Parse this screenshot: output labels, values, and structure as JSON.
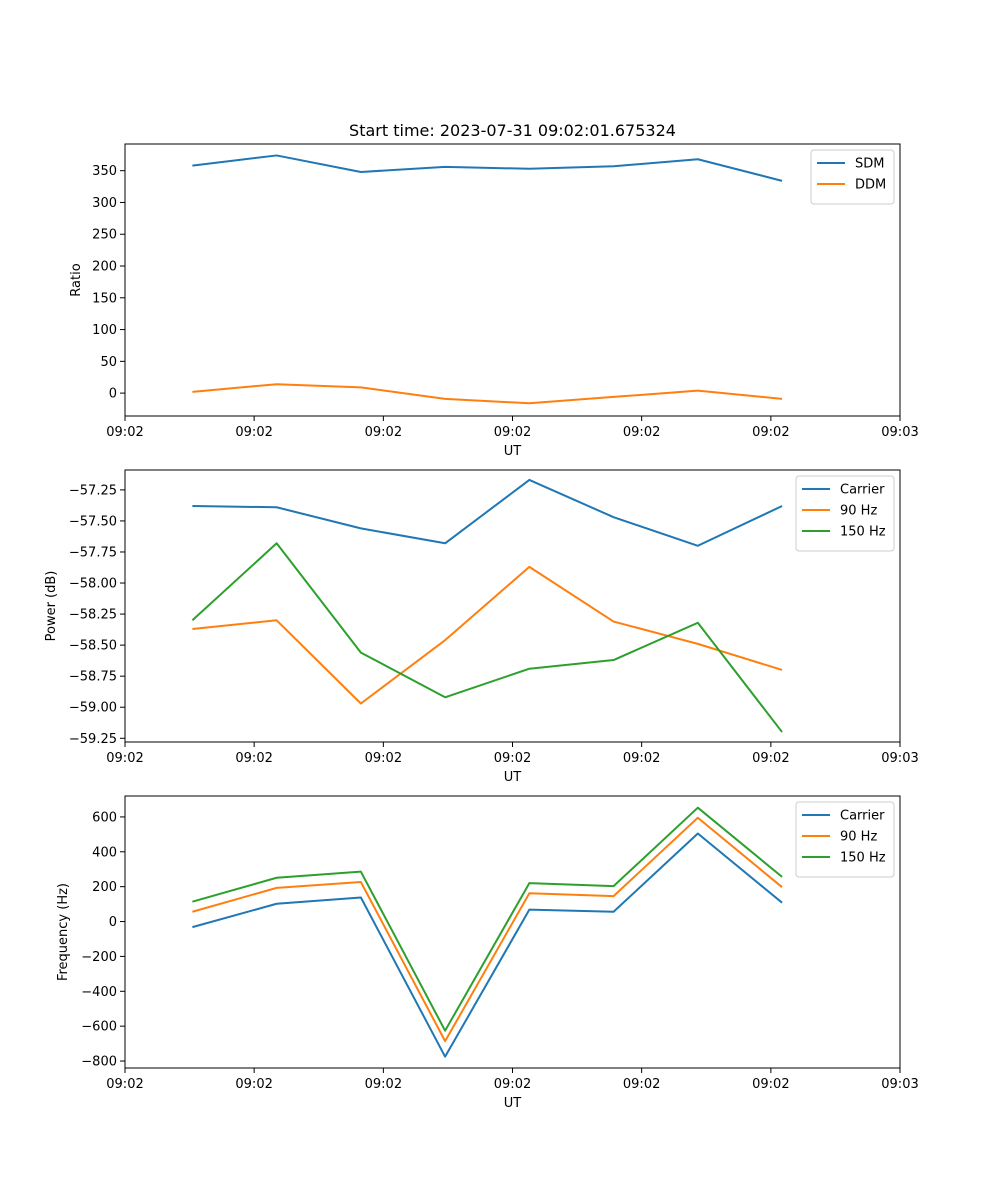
{
  "figure_title": "Start time: 2023-07-31 09:02:01.675324",
  "colors": {
    "blue": "#1f77b4",
    "orange": "#ff7f0e",
    "green": "#2ca02c"
  },
  "chart_data": [
    {
      "type": "line",
      "title": "Start time: 2023-07-31 09:02:01.675324",
      "xlabel": "UT",
      "ylabel": "Ratio",
      "x": [
        1,
        2,
        3,
        4,
        5,
        6,
        7,
        8
      ],
      "xlim": [
        0.2,
        9.4
      ],
      "x_ticks": [
        0.2,
        1.733,
        3.267,
        4.8,
        6.333,
        7.867,
        9.4
      ],
      "x_tick_labels": [
        "09:02",
        "09:02",
        "09:02",
        "09:02",
        "09:02",
        "09:02",
        "09:03"
      ],
      "ylim": [
        -36,
        392
      ],
      "y_ticks": [
        0,
        50,
        100,
        150,
        200,
        250,
        300,
        350
      ],
      "y_tick_labels": [
        "0",
        "50",
        "100",
        "150",
        "200",
        "250",
        "300",
        "350"
      ],
      "legend_position": "top-right",
      "series": [
        {
          "name": "SDM",
          "color": "#1f77b4",
          "values": [
            358,
            374,
            348,
            356,
            353,
            357,
            368,
            334
          ]
        },
        {
          "name": "DDM",
          "color": "#ff7f0e",
          "values": [
            2,
            14,
            9,
            -9,
            -16,
            -6,
            4,
            -9
          ]
        }
      ]
    },
    {
      "type": "line",
      "title": "",
      "xlabel": "UT",
      "ylabel": "Power (dB)",
      "x": [
        1,
        2,
        3,
        4,
        5,
        6,
        7,
        8
      ],
      "xlim": [
        0.2,
        9.4
      ],
      "x_ticks": [
        0.2,
        1.733,
        3.267,
        4.8,
        6.333,
        7.867,
        9.4
      ],
      "x_tick_labels": [
        "09:02",
        "09:02",
        "09:02",
        "09:02",
        "09:02",
        "09:02",
        "09:03"
      ],
      "ylim": [
        -59.28,
        -57.09
      ],
      "y_ticks": [
        -59.25,
        -59.0,
        -58.75,
        -58.5,
        -58.25,
        -58.0,
        -57.75,
        -57.5,
        -57.25
      ],
      "y_tick_labels": [
        "−59.25",
        "−59.00",
        "−58.75",
        "−58.50",
        "−58.25",
        "−58.00",
        "−57.75",
        "−57.50",
        "−57.25"
      ],
      "legend_position": "top-right",
      "series": [
        {
          "name": "Carrier",
          "color": "#1f77b4",
          "values": [
            -57.38,
            -57.39,
            -57.56,
            -57.68,
            -57.17,
            -57.47,
            -57.7,
            -57.38
          ]
        },
        {
          "name": "90 Hz",
          "color": "#ff7f0e",
          "values": [
            -58.37,
            -58.3,
            -58.97,
            -58.46,
            -57.87,
            -58.31,
            -58.49,
            -58.7
          ]
        },
        {
          "name": "150 Hz",
          "color": "#2ca02c",
          "values": [
            -58.3,
            -57.68,
            -58.56,
            -58.92,
            -58.69,
            -58.62,
            -58.32,
            -59.2
          ]
        }
      ]
    },
    {
      "type": "line",
      "title": "",
      "xlabel": "UT",
      "ylabel": "Frequency (Hz)",
      "x": [
        1,
        2,
        3,
        4,
        5,
        6,
        7,
        8
      ],
      "xlim": [
        0.2,
        9.4
      ],
      "x_ticks": [
        0.2,
        1.733,
        3.267,
        4.8,
        6.333,
        7.867,
        9.4
      ],
      "x_tick_labels": [
        "09:02",
        "09:02",
        "09:02",
        "09:02",
        "09:02",
        "09:02",
        "09:03"
      ],
      "ylim": [
        -840,
        720
      ],
      "y_ticks": [
        -800,
        -600,
        -400,
        -200,
        0,
        200,
        400,
        600
      ],
      "y_tick_labels": [
        "−800",
        "−600",
        "−400",
        "−200",
        "0",
        "200",
        "400",
        "600"
      ],
      "legend_position": "top-right",
      "series": [
        {
          "name": "Carrier",
          "color": "#1f77b4",
          "values": [
            -32,
            102,
            138,
            -775,
            68,
            56,
            505,
            108
          ]
        },
        {
          "name": "90 Hz",
          "color": "#ff7f0e",
          "values": [
            56,
            193,
            227,
            -686,
            162,
            146,
            595,
            197
          ]
        },
        {
          "name": "150 Hz",
          "color": "#2ca02c",
          "values": [
            114,
            251,
            286,
            -626,
            220,
            203,
            653,
            256
          ]
        }
      ]
    }
  ]
}
